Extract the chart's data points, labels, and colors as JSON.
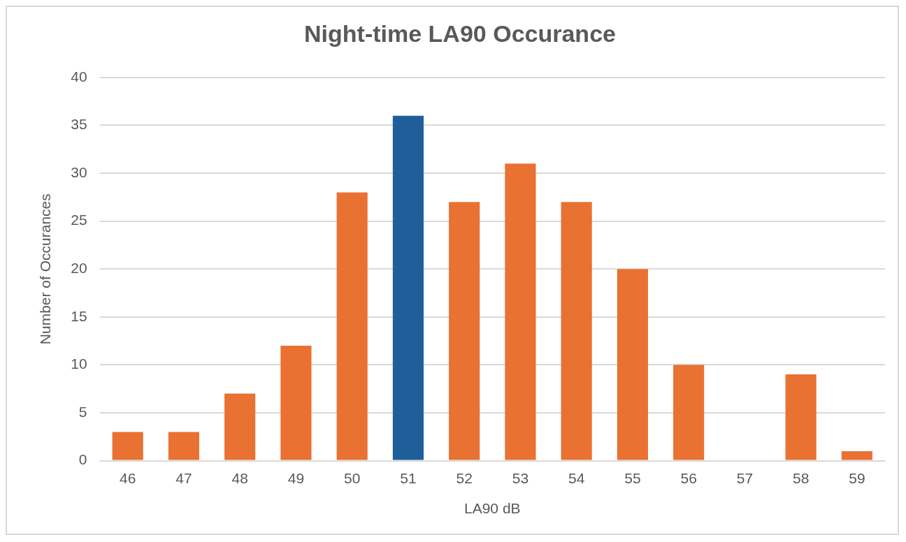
{
  "chart_data": {
    "type": "bar",
    "title": "Night-time LA90 Occurance",
    "xlabel": "LA90 dB",
    "ylabel": "Number of Occurances",
    "categories": [
      "46",
      "47",
      "48",
      "49",
      "50",
      "51",
      "52",
      "53",
      "54",
      "55",
      "56",
      "57",
      "58",
      "59"
    ],
    "values": [
      3,
      3,
      7,
      12,
      28,
      36,
      27,
      31,
      27,
      20,
      10,
      0,
      9,
      1
    ],
    "colors": [
      "#e97132",
      "#e97132",
      "#e97132",
      "#e97132",
      "#e97132",
      "#1f5e99",
      "#e97132",
      "#e97132",
      "#e97132",
      "#e97132",
      "#e97132",
      "#e97132",
      "#e97132",
      "#e97132"
    ],
    "ylim": [
      0,
      40
    ],
    "yticks": [
      0,
      5,
      10,
      15,
      20,
      25,
      30,
      35,
      40
    ],
    "grid": "y"
  }
}
